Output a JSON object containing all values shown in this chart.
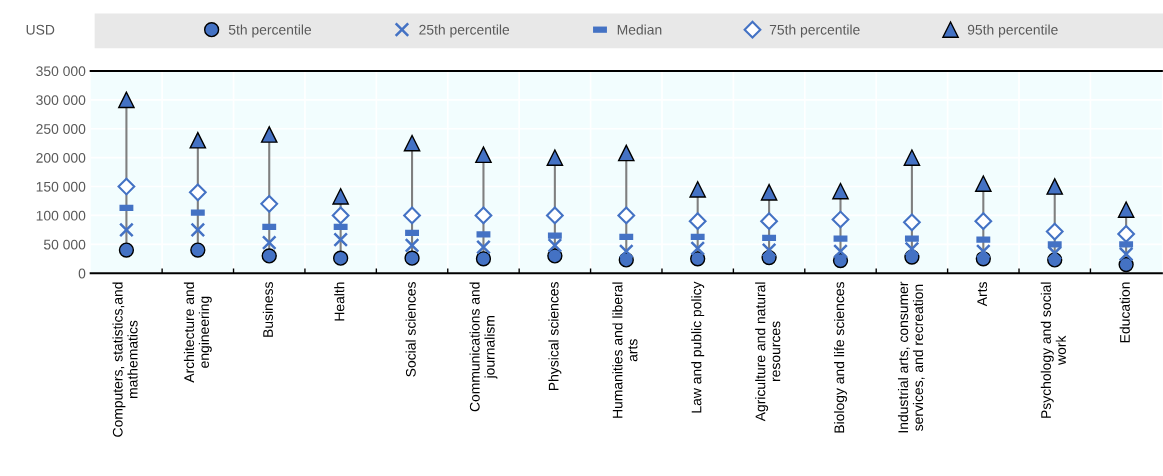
{
  "chart_data": {
    "type": "scatter",
    "ylabel": "USD",
    "categories": [
      "Computers, statistics,and mathematics",
      "Architecture and engineering",
      "Business",
      "Health",
      "Social sciences",
      "Communications and journalism",
      "Physical sciences",
      "Humanities and liberal arts",
      "Law and public policy",
      "Agriculture and natural resources",
      "Biology and life sciences",
      "Industrial arts, consumer services, and recreation",
      "Arts",
      "Psychology and social work",
      "Education"
    ],
    "series": [
      {
        "name": "5th percentile",
        "color": "#4472c4",
        "marker": "circle",
        "values": [
          40000,
          40000,
          30000,
          26000,
          26000,
          25000,
          30000,
          23000,
          25000,
          27000,
          22000,
          28000,
          25000,
          23000,
          15000
        ]
      },
      {
        "name": "25th percentile",
        "color": "#4472c4",
        "marker": "cross",
        "values": [
          75000,
          75000,
          53000,
          58000,
          48000,
          45000,
          48000,
          38000,
          43000,
          40000,
          38000,
          42000,
          38000,
          35000,
          33000
        ]
      },
      {
        "name": "Median",
        "color": "#4472c4",
        "values": [
          113000,
          105000,
          80000,
          80000,
          70000,
          67000,
          65000,
          63000,
          63000,
          61000,
          60000,
          60000,
          58000,
          50000,
          50000
        ]
      },
      {
        "name": "75th percentile",
        "color": "#4472c4",
        "marker": "diamond",
        "values": [
          150000,
          140000,
          120000,
          100000,
          100000,
          100000,
          100000,
          100000,
          90000,
          90000,
          93000,
          88000,
          90000,
          72000,
          68000
        ]
      },
      {
        "name": "95th percentile",
        "color": "#4472c4",
        "marker": "triangle",
        "values": [
          300000,
          230000,
          240000,
          133000,
          225000,
          205000,
          200000,
          208000,
          145000,
          140000,
          142000,
          200000,
          155000,
          150000,
          110000
        ]
      }
    ],
    "ylim": [
      0,
      350000
    ],
    "yticks": [
      {
        "value": 0,
        "label": "0"
      },
      {
        "value": 50000,
        "label": "50 000"
      },
      {
        "value": 100000,
        "label": "100 000"
      },
      {
        "value": 150000,
        "label": "150 000"
      },
      {
        "value": 200000,
        "label": "200 000"
      },
      {
        "value": 250000,
        "label": "250 000"
      },
      {
        "value": 300000,
        "label": "300 000"
      },
      {
        "value": 350000,
        "label": "350 000"
      }
    ],
    "grid": true,
    "legend": "top"
  }
}
